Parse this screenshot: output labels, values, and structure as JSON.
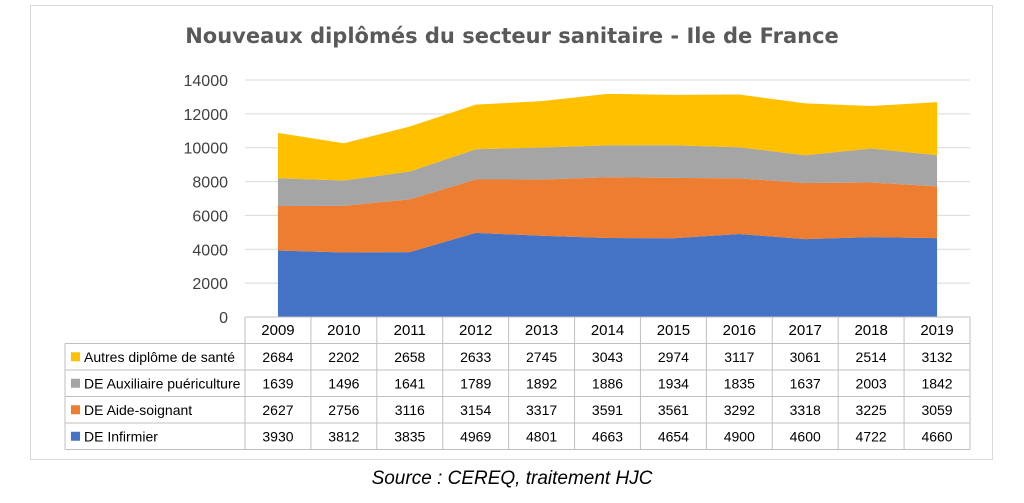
{
  "chart_data": {
    "type": "area",
    "stacked": true,
    "title": "Nouveaux diplômés du secteur sanitaire - Ile de France",
    "categories": [
      "2009",
      "2010",
      "2011",
      "2012",
      "2013",
      "2014",
      "2015",
      "2016",
      "2017",
      "2018",
      "2019"
    ],
    "ylim": [
      0,
      14000
    ],
    "yticks": [
      0,
      2000,
      4000,
      6000,
      8000,
      10000,
      12000,
      14000
    ],
    "grid": true,
    "legend_position": "data-table",
    "series": [
      {
        "name": "DE Infirmier",
        "color": "#4472c4",
        "values": [
          3930,
          3812,
          3835,
          4969,
          4801,
          4663,
          4654,
          4900,
          4600,
          4722,
          4660
        ]
      },
      {
        "name": "DE Aide-soignant",
        "color": "#ed7d31",
        "values": [
          2627,
          2756,
          3116,
          3154,
          3317,
          3591,
          3561,
          3292,
          3318,
          3225,
          3059
        ]
      },
      {
        "name": "DE Auxiliaire puériculture",
        "color": "#a5a5a5",
        "values": [
          1639,
          1496,
          1641,
          1789,
          1892,
          1886,
          1934,
          1835,
          1637,
          2003,
          1842
        ]
      },
      {
        "name": "Autres diplôme de santé",
        "color": "#ffc000",
        "values": [
          2684,
          2202,
          2658,
          2633,
          2745,
          3043,
          2974,
          3117,
          3061,
          2514,
          3132
        ]
      }
    ]
  },
  "source": "Source : CEREQ, traitement HJC"
}
